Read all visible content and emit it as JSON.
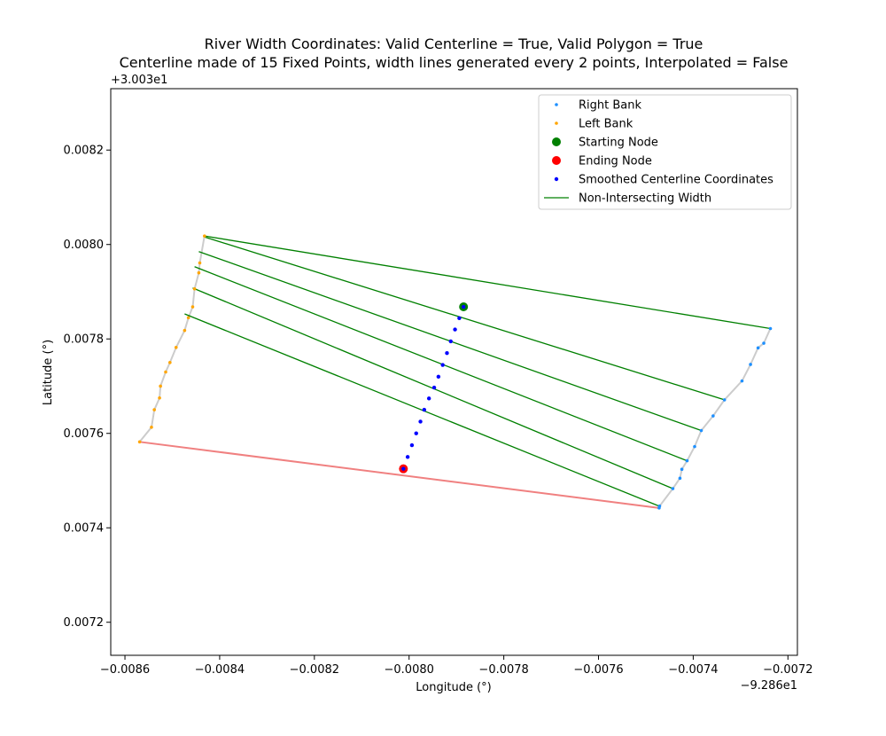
{
  "chart_data": {
    "type": "scatter",
    "title_line1": "River Width Coordinates: Valid Centerline = True, Valid Polygon = True",
    "title_line2": "Centerline made of 15 Fixed Points, width lines generated every 2 points, Interpolated = False",
    "xlabel": "Longitude (°)",
    "ylabel": "Latitude (°)",
    "x_offset_label": "−9.286e1",
    "y_offset_label": "+3.003e1",
    "xlim": [
      -0.00863,
      -0.00718
    ],
    "ylim": [
      0.00713,
      0.00833
    ],
    "xticks": [
      -0.0086,
      -0.0084,
      -0.0082,
      -0.008,
      -0.0078,
      -0.0076,
      -0.0074,
      -0.0072
    ],
    "xtick_labels": [
      "−0.0086",
      "−0.0084",
      "−0.0082",
      "−0.0080",
      "−0.0078",
      "−0.0076",
      "−0.0074",
      "−0.0072"
    ],
    "yticks": [
      0.0072,
      0.0074,
      0.0076,
      0.0078,
      0.008,
      0.0082
    ],
    "ytick_labels": [
      "0.0072",
      "0.0074",
      "0.0076",
      "0.0078",
      "0.0080",
      "0.0082"
    ],
    "legend": {
      "placement": "top-right",
      "entries": [
        {
          "label": "Right Bank",
          "kind": "dot-small",
          "color": "#1e90ff"
        },
        {
          "label": "Left Bank",
          "kind": "dot-small",
          "color": "#ffa500"
        },
        {
          "label": "Starting Node",
          "kind": "dot-large",
          "color": "#008000"
        },
        {
          "label": "Ending Node",
          "kind": "dot-large",
          "color": "#ff0000"
        },
        {
          "label": "Smoothed Centerline Coordinates",
          "kind": "dot-medium",
          "color": "#0000ff"
        },
        {
          "label": "Non-Intersecting Width",
          "kind": "line",
          "color": "#008000"
        }
      ]
    },
    "colors": {
      "right_bank": "#1e90ff",
      "left_bank": "#ffa500",
      "bank_line": "#cccccc",
      "start": "#008000",
      "end": "#ff0000",
      "centerline": "#0000ff",
      "width_line": "#008000",
      "closing_line": "#f08080"
    },
    "right_bank": [
      [
        -0.007237,
        0.007822
      ],
      [
        -0.007251,
        0.007791
      ],
      [
        -0.007263,
        0.007781
      ],
      [
        -0.007279,
        0.007746
      ],
      [
        -0.007297,
        0.007711
      ],
      [
        -0.007334,
        0.007671
      ],
      [
        -0.007358,
        0.007637
      ],
      [
        -0.007383,
        0.007606
      ],
      [
        -0.007397,
        0.007572
      ],
      [
        -0.007413,
        0.007542
      ],
      [
        -0.007424,
        0.007524
      ],
      [
        -0.007428,
        0.007505
      ],
      [
        -0.007443,
        0.007483
      ],
      [
        -0.007471,
        0.007446
      ],
      [
        -0.007472,
        0.007442
      ]
    ],
    "left_bank": [
      [
        -0.008432,
        0.008018
      ],
      [
        -0.008442,
        0.007961
      ],
      [
        -0.008444,
        0.00794
      ],
      [
        -0.008453,
        0.007906
      ],
      [
        -0.008457,
        0.007868
      ],
      [
        -0.008466,
        0.007845
      ],
      [
        -0.008474,
        0.007818
      ],
      [
        -0.008492,
        0.007782
      ],
      [
        -0.008505,
        0.00775
      ],
      [
        -0.008514,
        0.00773
      ],
      [
        -0.008525,
        0.0077
      ],
      [
        -0.008527,
        0.007675
      ],
      [
        -0.008538,
        0.00765
      ],
      [
        -0.008544,
        0.007613
      ],
      [
        -0.008569,
        0.007582
      ]
    ],
    "centerline": [
      [
        -0.007885,
        0.007868
      ],
      [
        -0.007894,
        0.007844
      ],
      [
        -0.007903,
        0.00782
      ],
      [
        -0.007912,
        0.007795
      ],
      [
        -0.00792,
        0.00777
      ],
      [
        -0.007929,
        0.007745
      ],
      [
        -0.007938,
        0.00772
      ],
      [
        -0.007947,
        0.007697
      ],
      [
        -0.007958,
        0.007674
      ],
      [
        -0.007968,
        0.00765
      ],
      [
        -0.007976,
        0.007625
      ],
      [
        -0.007985,
        0.0076
      ],
      [
        -0.007994,
        0.007575
      ],
      [
        -0.008003,
        0.00755
      ],
      [
        -0.008012,
        0.007525
      ]
    ],
    "start_node": [
      -0.007885,
      0.007868
    ],
    "end_node": [
      -0.008012,
      0.007525
    ],
    "width_lines": [
      [
        [
          -0.008432,
          0.008018
        ],
        [
          -0.007237,
          0.007822
        ]
      ],
      [
        [
          -0.008432,
          0.008016
        ],
        [
          -0.007334,
          0.007671
        ]
      ],
      [
        [
          -0.008444,
          0.007985
        ],
        [
          -0.007383,
          0.007606
        ]
      ],
      [
        [
          -0.008453,
          0.007953
        ],
        [
          -0.007413,
          0.007542
        ]
      ],
      [
        [
          -0.008457,
          0.007908
        ],
        [
          -0.007443,
          0.007483
        ]
      ],
      [
        [
          -0.008474,
          0.007853
        ],
        [
          -0.007472,
          0.007446
        ]
      ]
    ],
    "closing_line": [
      [
        -0.008569,
        0.007582
      ],
      [
        -0.007472,
        0.007442
      ]
    ]
  }
}
